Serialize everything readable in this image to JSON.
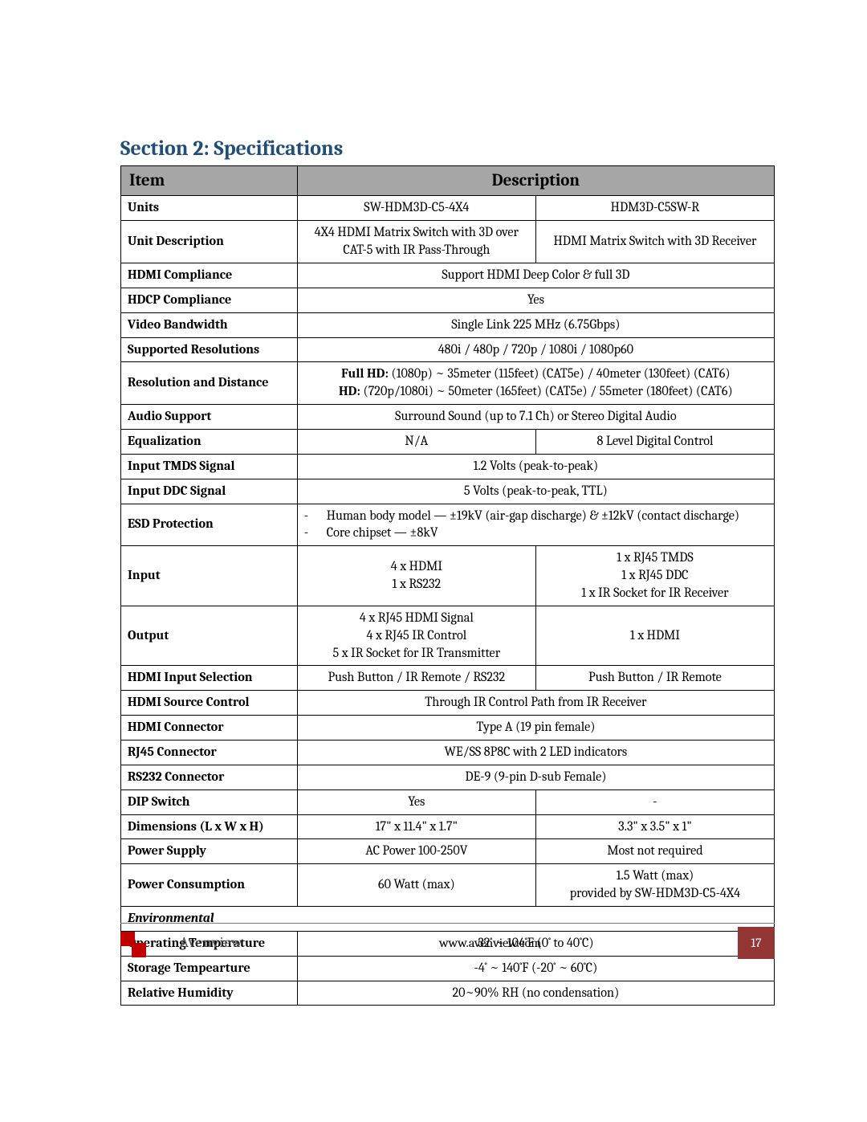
{
  "title": "Section 2: Specifications",
  "title_color": "#1f4e79",
  "header": {
    "item": "Item",
    "desc": "Description",
    "bg": "#a6a6a6"
  },
  "footer": {
    "brand": "Avenview",
    "site": "www.avenview.com",
    "page": "17",
    "logo_color": "#c00000",
    "page_bg": "#943634"
  },
  "rows": [
    {
      "label": "Units",
      "a": "SW-HDM3D-C5-4X4",
      "b": "HDM3D-C5SW-R"
    },
    {
      "label": "Unit Description",
      "a": "4X4 HDMI Matrix Switch with 3D over CAT-5 with IR Pass-Through",
      "b": "HDMI Matrix Switch with 3D Receiver"
    },
    {
      "label": "HDMI Compliance",
      "span": "Support HDMI Deep Color & full 3D"
    },
    {
      "label": "HDCP Compliance",
      "span": "Yes"
    },
    {
      "label": "Video Bandwidth",
      "span": "Single Link 225 MHz (6.75Gbps)"
    },
    {
      "label": "Supported Resolutions",
      "span": "480i / 480p / 720p / 1080i / 1080p60"
    },
    {
      "label": "Resolution and Distance",
      "span_html_lines": [
        "<b>Full HD:</b> (1080p) ~ 35meter (115feet) (CAT5e) / 40meter (130feet) (CAT6)",
        "<b>HD:</b> (720p/1080i) ~ 50meter (165feet) (CAT5e) / 55meter (180feet) (CAT6)"
      ]
    },
    {
      "label": "Audio Support",
      "span": "Surround Sound (up to 7.1 Ch) or Stereo Digital Audio"
    },
    {
      "label": "Equalization",
      "a": "N/A",
      "b": "8 Level Digital Control"
    },
    {
      "label": "Input TMDS Signal",
      "span": "1.2 Volts (peak-to-peak)"
    },
    {
      "label": "Input DDC Signal",
      "span": "5 Volts (peak-to-peak, TTL)"
    },
    {
      "label": "ESD Protection",
      "span_bullets": [
        "Human body model — ±19kV (air-gap discharge) & ±12kV (contact discharge)",
        "Core chipset — ±8kV"
      ]
    },
    {
      "label": "Input",
      "a_lines": [
        "4 x HDMI",
        "1 x RS232"
      ],
      "b_lines": [
        "1 x RJ45 TMDS",
        "1 x RJ45 DDC",
        "1 x IR Socket for IR Receiver"
      ]
    },
    {
      "label": "Output",
      "a_lines": [
        "4 x RJ45 HDMI Signal",
        "4 x RJ45 IR Control",
        "5 x IR Socket for IR Transmitter"
      ],
      "b": "1 x HDMI"
    },
    {
      "label": "HDMI Input Selection",
      "a": "Push Button / IR Remote / RS232",
      "b": "Push Button / IR Remote"
    },
    {
      "label": "HDMI Source Control",
      "span": "Through IR Control Path from IR Receiver"
    },
    {
      "label": "HDMI Connector",
      "span": "Type A (19 pin female)"
    },
    {
      "label": "RJ45 Connector",
      "span": "WE/SS 8P8C with 2 LED indicators"
    },
    {
      "label": "RS232 Connector",
      "span": "DE-9 (9-pin D-sub Female)"
    },
    {
      "label": "DIP Switch",
      "a": "Yes",
      "b": "-"
    },
    {
      "label": "Dimensions (L x W x H)",
      "a": "17\" x 11.4\" x 1.7\"",
      "b": "3.3\" x 3.5\" x 1\""
    },
    {
      "label": "Power Supply",
      "a": "AC Power 100-250V",
      "b": "Most not required"
    },
    {
      "label": "Power Consumption",
      "a": "60 Watt (max)",
      "b_lines": [
        "1.5 Watt (max)",
        "provided by SW-HDM3D-C5-4X4"
      ]
    },
    {
      "subhead": "Environmental"
    },
    {
      "label": "Operating Temperature",
      "span": "32˚ ~ 104˚F (0˚ to 40˚C)"
    },
    {
      "label": "Storage Tempearture",
      "span": "-4˚ ~ 140˚F (-20˚ ~ 60˚C)"
    },
    {
      "label": "Relative Humidity",
      "span": "20~90% RH (no condensation)"
    }
  ]
}
